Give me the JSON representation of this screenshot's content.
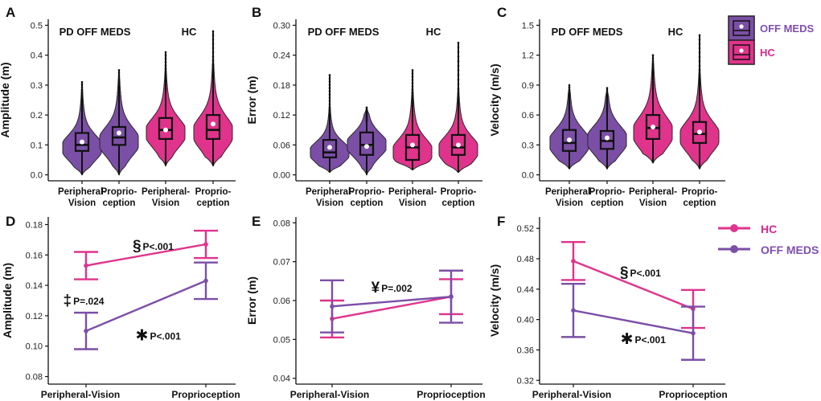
{
  "colors": {
    "pd": "#7B4FA6",
    "hc": "#E0338C",
    "pd_text": "#7F4FB0",
    "hc_text": "#D42B8E"
  },
  "legend_top": {
    "items": [
      {
        "label": "OFF MEDS",
        "color": "#7F4FB0"
      },
      {
        "label": "HC",
        "color": "#D42B8E"
      }
    ]
  },
  "legend_bottom": {
    "items": [
      {
        "label": "HC",
        "color": "#D42B8E"
      },
      {
        "label": "OFF MEDS",
        "color": "#7F4FB0"
      }
    ]
  },
  "chart_data": [
    {
      "id": "A",
      "type": "violin",
      "panel_label": "A",
      "ylabel": "Amplitude (m)",
      "ylim": [
        -0.02,
        0.52
      ],
      "yticks": [
        0.0,
        0.1,
        0.2,
        0.3,
        0.4,
        0.5
      ],
      "ytick_labels": [
        "0.0",
        "0.1",
        "0.2",
        "0.3",
        "0.4",
        "0.5"
      ],
      "group_labels": [
        "PD OFF MEDS",
        "HC"
      ],
      "categories": [
        "Peripheral-\nVision",
        "Proprio-\nception",
        "Peripheral-\nVision",
        "Proprio-\nception"
      ],
      "series": [
        {
          "group": "PD OFF MEDS",
          "condition": "Peripheral-Vision",
          "min": 0.0,
          "max": 0.31,
          "median": 0.1,
          "q1": 0.08,
          "q3": 0.14,
          "mean": 0.11,
          "mode": 0.09,
          "spread": 0.04
        },
        {
          "group": "PD OFF MEDS",
          "condition": "Proprioception",
          "min": 0.0,
          "max": 0.35,
          "median": 0.125,
          "q1": 0.1,
          "q3": 0.16,
          "mean": 0.14,
          "mode": 0.11,
          "spread": 0.045
        },
        {
          "group": "HC",
          "condition": "Peripheral-Vision",
          "min": 0.03,
          "max": 0.41,
          "median": 0.15,
          "q1": 0.12,
          "q3": 0.19,
          "mean": 0.15,
          "mode": 0.14,
          "spread": 0.045
        },
        {
          "group": "HC",
          "condition": "Proprioception",
          "min": 0.03,
          "max": 0.48,
          "median": 0.15,
          "q1": 0.12,
          "q3": 0.2,
          "mean": 0.17,
          "mode": 0.14,
          "spread": 0.05
        }
      ]
    },
    {
      "id": "B",
      "type": "violin",
      "panel_label": "B",
      "ylabel": "Error (m)",
      "ylim": [
        -0.012,
        0.312
      ],
      "yticks": [
        0.0,
        0.06,
        0.12,
        0.18,
        0.24,
        0.3
      ],
      "ytick_labels": [
        "0.00",
        "0.06",
        "0.12",
        "0.18",
        "0.24",
        "0.30"
      ],
      "group_labels": [
        "PD OFF MEDS",
        "HC"
      ],
      "categories": [
        "Peripheral-\nVision",
        "Proprio-\nception",
        "Peripheral-\nVision",
        "Proprio-\nception"
      ],
      "series": [
        {
          "group": "PD OFF MEDS",
          "condition": "Peripheral-Vision",
          "min": 0.005,
          "max": 0.2,
          "median": 0.045,
          "q1": 0.035,
          "q3": 0.07,
          "mean": 0.055,
          "mode": 0.045,
          "spread": 0.02
        },
        {
          "group": "PD OFF MEDS",
          "condition": "Proprioception",
          "min": 0.0,
          "max": 0.135,
          "median": 0.06,
          "q1": 0.04,
          "q3": 0.085,
          "mean": 0.057,
          "mode": 0.06,
          "spread": 0.022
        },
        {
          "group": "HC",
          "condition": "Peripheral-Vision",
          "min": 0.01,
          "max": 0.21,
          "median": 0.055,
          "q1": 0.03,
          "q3": 0.08,
          "mean": 0.06,
          "mode": 0.045,
          "spread": 0.025
        },
        {
          "group": "HC",
          "condition": "Proprioception",
          "min": 0.005,
          "max": 0.265,
          "median": 0.055,
          "q1": 0.04,
          "q3": 0.08,
          "mean": 0.06,
          "mode": 0.05,
          "spread": 0.025
        }
      ]
    },
    {
      "id": "C",
      "type": "violin",
      "panel_label": "C",
      "ylabel": "Velocity (m/s)",
      "ylim": [
        -0.06,
        1.56
      ],
      "yticks": [
        0.0,
        0.3,
        0.6,
        0.9,
        1.2,
        1.5
      ],
      "ytick_labels": [
        "0.0",
        "0.3",
        "0.6",
        "0.9",
        "1.2",
        "1.5"
      ],
      "group_labels": [
        "PD OFF MEDS",
        "HC"
      ],
      "categories": [
        "Peripheral-\nVision",
        "Proprio-\nception",
        "Peripheral-\nVision",
        "Proprio-\nception"
      ],
      "series": [
        {
          "group": "PD OFF MEDS",
          "condition": "Peripheral-Vision",
          "min": 0.06,
          "max": 0.9,
          "median": 0.32,
          "q1": 0.24,
          "q3": 0.45,
          "mean": 0.35,
          "mode": 0.32,
          "spread": 0.13
        },
        {
          "group": "PD OFF MEDS",
          "condition": "Proprioception",
          "min": 0.06,
          "max": 0.87,
          "median": 0.34,
          "q1": 0.26,
          "q3": 0.44,
          "mean": 0.37,
          "mode": 0.35,
          "spread": 0.13
        },
        {
          "group": "HC",
          "condition": "Peripheral-Vision",
          "min": 0.12,
          "max": 1.2,
          "median": 0.47,
          "q1": 0.36,
          "q3": 0.6,
          "mean": 0.48,
          "mode": 0.42,
          "spread": 0.15
        },
        {
          "group": "HC",
          "condition": "Proprioception",
          "min": 0.06,
          "max": 1.4,
          "median": 0.41,
          "q1": 0.32,
          "q3": 0.53,
          "mean": 0.43,
          "mode": 0.38,
          "spread": 0.14
        }
      ]
    },
    {
      "id": "D",
      "type": "line",
      "panel_label": "D",
      "ylabel": "Amplitude (m)",
      "ylim": [
        0.075,
        0.185
      ],
      "yticks": [
        0.08,
        0.1,
        0.12,
        0.14,
        0.16,
        0.18
      ],
      "ytick_labels": [
        "0.08",
        "0.10",
        "0.12",
        "0.14",
        "0.16",
        "0.18"
      ],
      "categories": [
        "Peripheral-Vision",
        "Proprioception"
      ],
      "series": [
        {
          "name": "HC",
          "values": [
            0.153,
            0.167
          ],
          "lower": [
            0.144,
            0.158
          ],
          "upper": [
            0.162,
            0.176
          ]
        },
        {
          "name": "OFF MEDS",
          "values": [
            0.11,
            0.143
          ],
          "lower": [
            0.098,
            0.131
          ],
          "upper": [
            0.122,
            0.155
          ]
        }
      ],
      "annotations": [
        {
          "symbol": "§",
          "text": "P<.001",
          "cat_pos": 0.46,
          "y": 0.166
        },
        {
          "symbol": "‡",
          "text": "P=.024",
          "cat_pos": -0.12,
          "y": 0.13
        },
        {
          "symbol": "✱",
          "text": "P<.001",
          "cat_pos": 0.52,
          "y": 0.107
        }
      ]
    },
    {
      "id": "E",
      "type": "line",
      "panel_label": "E",
      "ylabel": "Error (m)",
      "ylim": [
        0.0385,
        0.0815
      ],
      "yticks": [
        0.04,
        0.05,
        0.06,
        0.07,
        0.08
      ],
      "ytick_labels": [
        "0.04",
        "0.05",
        "0.06",
        "0.07",
        "0.08"
      ],
      "categories": [
        "Peripheral-Vision",
        "Proprioception"
      ],
      "series": [
        {
          "name": "HC",
          "values": [
            0.0553,
            0.061
          ],
          "lower": [
            0.0505,
            0.0565
          ],
          "upper": [
            0.06,
            0.0655
          ]
        },
        {
          "name": "OFF MEDS",
          "values": [
            0.0585,
            0.061
          ],
          "lower": [
            0.0518,
            0.0543
          ],
          "upper": [
            0.0652,
            0.0677
          ]
        }
      ],
      "annotations": [
        {
          "symbol": "¥",
          "text": "P=.002",
          "cat_pos": 0.4,
          "y": 0.0633
        }
      ]
    },
    {
      "id": "F",
      "type": "line",
      "panel_label": "F",
      "ylabel": "Velocity (m/s)",
      "ylim": [
        0.315,
        0.535
      ],
      "yticks": [
        0.32,
        0.36,
        0.4,
        0.44,
        0.48,
        0.52
      ],
      "ytick_labels": [
        "0.32",
        "0.36",
        "0.40",
        "0.44",
        "0.48",
        "0.52"
      ],
      "categories": [
        "Peripheral-Vision",
        "Proprioception"
      ],
      "series": [
        {
          "name": "HC",
          "values": [
            0.477,
            0.414
          ],
          "lower": [
            0.452,
            0.389
          ],
          "upper": [
            0.502,
            0.439
          ]
        },
        {
          "name": "OFF MEDS",
          "values": [
            0.412,
            0.382
          ],
          "lower": [
            0.377,
            0.347
          ],
          "upper": [
            0.447,
            0.417
          ]
        }
      ],
      "annotations": [
        {
          "symbol": "§",
          "text": "P<.001",
          "cat_pos": 0.46,
          "y": 0.462
        },
        {
          "symbol": "✱",
          "text": "P<.001",
          "cat_pos": 0.5,
          "y": 0.374
        }
      ]
    }
  ]
}
